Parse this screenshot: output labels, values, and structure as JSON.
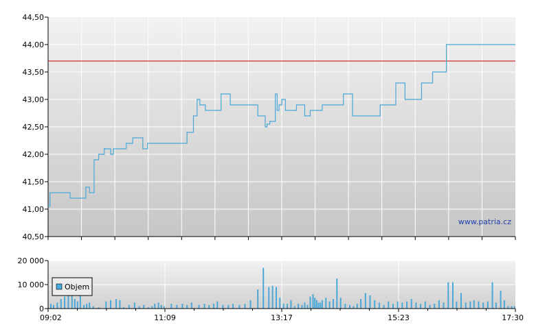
{
  "chart_data": [
    {
      "type": "line",
      "y_ticks": [
        "40,50",
        "41,00",
        "41,50",
        "42,00",
        "42,50",
        "43,00",
        "43,50",
        "44,00",
        "44,50"
      ],
      "ylim": [
        40.5,
        44.5
      ],
      "x_ticks": [
        "09:02",
        "11:09",
        "13:17",
        "15:23",
        "17:30"
      ],
      "xlim": [
        "09:02",
        "17:30"
      ],
      "grid": true,
      "reference_line": {
        "value": 43.7,
        "color": "#cc0000"
      },
      "series_color": "#4aa7d8",
      "watermark": "www.patria.cz",
      "series": [
        {
          "x": [
            "09:02",
            "09:04",
            "09:07",
            "09:10",
            "09:13",
            "09:17",
            "09:22",
            "09:26",
            "09:31",
            "09:36",
            "09:40",
            "09:43",
            "09:47",
            "09:52",
            "09:57",
            "10:03",
            "10:10",
            "10:13",
            "10:17",
            "10:22",
            "10:27",
            "10:30",
            "10:34",
            "10:38",
            "10:41",
            "10:45",
            "10:50",
            "10:57",
            "11:07",
            "11:14",
            "11:20",
            "11:27",
            "11:33",
            "11:40",
            "11:44",
            "11:47",
            "11:53",
            "12:00",
            "12:10",
            "12:20",
            "12:35",
            "12:50",
            "12:58",
            "13:00",
            "13:03",
            "13:06",
            "13:09",
            "13:11",
            "13:13",
            "13:16",
            "13:20",
            "13:25",
            "13:28",
            "13:29",
            "13:32",
            "13:36",
            "13:39",
            "13:41",
            "13:42",
            "13:44",
            "13:47",
            "13:53",
            "13:56",
            "14:00",
            "14:06",
            "14:13",
            "14:23",
            "14:33",
            "14:43",
            "14:53",
            "15:03",
            "15:10",
            "15:20",
            "15:30",
            "15:40",
            "15:47",
            "15:48",
            "15:49",
            "15:52",
            "16:00",
            "16:05",
            "16:12",
            "16:15",
            "16:20",
            "16:24",
            "16:27",
            "16:30",
            "16:38",
            "16:43",
            "16:50",
            "16:55",
            "17:00",
            "17:05",
            "17:10",
            "17:15",
            "17:20",
            "17:25",
            "17:29",
            "17:30"
          ],
          "values": [
            41.05,
            41.3,
            41.3,
            41.3,
            41.3,
            41.3,
            41.3,
            41.2,
            41.2,
            41.2,
            41.2,
            41.4,
            41.3,
            41.9,
            42.0,
            42.1,
            42.0,
            42.1,
            42.1,
            42.1,
            42.2,
            42.2,
            42.3,
            42.3,
            42.3,
            42.1,
            42.2,
            42.2,
            42.2,
            42.2,
            42.2,
            42.2,
            42.4,
            42.7,
            43.0,
            42.9,
            42.8,
            42.8,
            43.1,
            42.9,
            42.9,
            42.7,
            42.5,
            42.55,
            42.6,
            42.6,
            43.1,
            42.8,
            42.9,
            43.0,
            42.8,
            42.8,
            42.8,
            42.8,
            42.9,
            42.9,
            42.9,
            42.7,
            42.7,
            42.7,
            42.8,
            42.8,
            42.8,
            42.9,
            42.9,
            42.9,
            43.1,
            42.7,
            42.7,
            42.7,
            42.9,
            42.9,
            43.3,
            43.0,
            43.0,
            43.0,
            43.3,
            43.3,
            43.3,
            43.5,
            43.5,
            43.5,
            44.0,
            44.0,
            44.0,
            44.0,
            44.0,
            44.0,
            44.0,
            44.0,
            44.0,
            44.0,
            44.0,
            44.0,
            44.0,
            44.0,
            44.0,
            44.0,
            44.0
          ]
        }
      ]
    },
    {
      "type": "bar",
      "y_ticks": [
        "0",
        "10 000",
        "20 000"
      ],
      "ylim": [
        0,
        20000
      ],
      "x_ticks": [
        "09:02",
        "11:09",
        "13:17",
        "15:23",
        "17:30"
      ],
      "grid": true,
      "legend": {
        "label": "Objem",
        "position": "top-left",
        "color": "#4aa7d8"
      },
      "series": [
        {
          "name": "Objem",
          "x": [
            "09:05",
            "09:08",
            "09:12",
            "09:16",
            "09:20",
            "09:24",
            "09:28",
            "09:31",
            "09:34",
            "09:37",
            "09:41",
            "09:44",
            "09:47",
            "09:51",
            "09:57",
            "10:05",
            "10:10",
            "10:16",
            "10:20",
            "10:24",
            "10:30",
            "10:36",
            "10:41",
            "10:46",
            "10:51",
            "10:55",
            "10:58",
            "11:02",
            "11:05",
            "11:08",
            "11:16",
            "11:22",
            "11:28",
            "11:33",
            "11:38",
            "11:46",
            "11:52",
            "11:57",
            "12:02",
            "12:06",
            "12:12",
            "12:18",
            "12:23",
            "12:30",
            "12:36",
            "12:42",
            "12:50",
            "12:56",
            "13:02",
            "13:06",
            "13:10",
            "13:14",
            "13:18",
            "13:22",
            "13:26",
            "13:30",
            "13:34",
            "13:38",
            "13:41",
            "13:44",
            "13:47",
            "13:50",
            "13:52",
            "13:54",
            "13:56",
            "13:58",
            "14:00",
            "14:04",
            "14:08",
            "14:12",
            "14:16",
            "14:20",
            "14:25",
            "14:30",
            "14:34",
            "14:38",
            "14:42",
            "14:47",
            "14:52",
            "14:57",
            "15:02",
            "15:07",
            "15:12",
            "15:17",
            "15:22",
            "15:27",
            "15:32",
            "15:37",
            "15:42",
            "15:47",
            "15:52",
            "15:57",
            "16:02",
            "16:07",
            "16:12",
            "16:17",
            "16:22",
            "16:26",
            "16:31",
            "16:36",
            "16:41",
            "16:45",
            "16:50",
            "16:55",
            "17:00",
            "17:05",
            "17:09",
            "17:14",
            "17:18",
            "17:22",
            "17:26",
            "17:29"
          ],
          "values": [
            2000,
            1500,
            2500,
            4000,
            5000,
            5500,
            6000,
            4000,
            3000,
            5500,
            1500,
            2000,
            2500,
            1000,
            500,
            3000,
            3500,
            4000,
            3500,
            500,
            1500,
            2500,
            1000,
            1500,
            500,
            1000,
            2000,
            2500,
            1500,
            1000,
            2000,
            1500,
            2000,
            1500,
            2500,
            1500,
            2000,
            1500,
            2000,
            3000,
            1500,
            1500,
            2000,
            1500,
            2000,
            3500,
            8000,
            17000,
            9000,
            9500,
            9000,
            4500,
            2000,
            2000,
            3500,
            1000,
            2000,
            1500,
            2500,
            1500,
            5000,
            6000,
            4500,
            3500,
            2500,
            2500,
            3500,
            4500,
            3000,
            4000,
            12500,
            4500,
            2000,
            1500,
            1000,
            2000,
            4000,
            6500,
            5500,
            3500,
            2500,
            1500,
            3000,
            2000,
            3000,
            2500,
            3000,
            4000,
            2500,
            2000,
            3000,
            1500,
            2000,
            3500,
            2500,
            11000,
            11000,
            3000,
            6500,
            2500,
            3000,
            3500,
            3000,
            2500,
            3000,
            11000,
            2500,
            7500,
            3500,
            1000,
            1000,
            1000
          ]
        }
      ]
    }
  ]
}
